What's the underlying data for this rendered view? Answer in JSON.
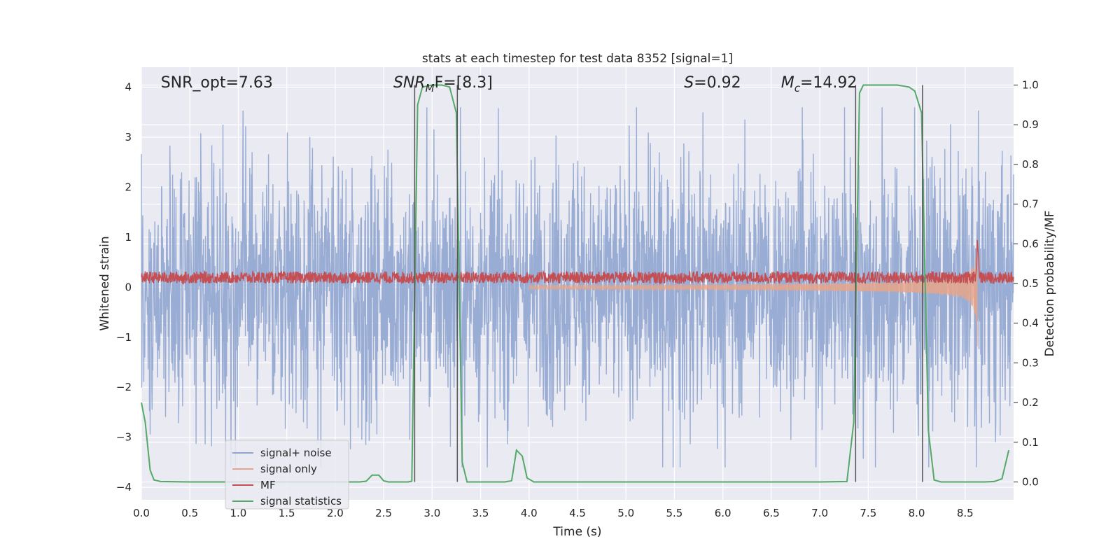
{
  "chart_data": {
    "type": "line",
    "title": "stats at each timestep for test data 8352 [signal=1]",
    "xlabel": "Time (s)",
    "ylabel_left": "Whitened strain",
    "ylabel_right": "Detection probability/MF",
    "xlim": [
      0.0,
      9.0
    ],
    "ylim_left": [
      -4.25,
      4.4
    ],
    "ylim_right": [
      -0.045,
      1.045
    ],
    "x_ticks": [
      "0.0",
      "0.5",
      "1.0",
      "1.5",
      "2.0",
      "2.5",
      "3.0",
      "3.5",
      "4.0",
      "4.5",
      "5.0",
      "5.5",
      "6.0",
      "6.5",
      "7.0",
      "7.5",
      "8.0",
      "8.5"
    ],
    "y_left_ticks": [
      "4",
      "3",
      "2",
      "1",
      "0",
      "−1",
      "−2",
      "−3",
      "−4"
    ],
    "y_right_ticks": [
      "1.0",
      "0.9",
      "0.8",
      "0.7",
      "0.6",
      "0.5",
      "0.4",
      "0.3",
      "0.2",
      "0.1",
      "0.0"
    ],
    "grid": true,
    "legend_position": "lower-left",
    "annotations": [
      {
        "text": "SNR_opt=7.63",
        "x_data": 0.2
      },
      {
        "mathvar": "SNR",
        "sub": "M",
        "rest": "F=[8.3]",
        "x_data": 2.6
      },
      {
        "mathvar": "S",
        "rest": "=0.92",
        "x_data": 5.6
      },
      {
        "mathvar": "M",
        "sub": "c",
        "rest": "=14.92",
        "x_data": 6.6
      }
    ],
    "series": [
      {
        "name": "signal+ noise",
        "color": "#8fa5d0",
        "axis": "left",
        "description": "whitened strain, amplitude mostly between -2.7 and 2.7 with spikes to about ±3.6"
      },
      {
        "name": "signal only",
        "color": "#e8a48a",
        "axis": "left",
        "description": "chirp waveform, amplitude growing to about ±1.6 at t≈8.63 s then ending"
      },
      {
        "name": "MF",
        "color": "#c44e52",
        "axis": "right",
        "description": "matched filter output near 0.51–0.53, peak ≈0.60 at t≈8.63 s"
      },
      {
        "name": "signal statistics",
        "color": "#55a868",
        "axis": "right",
        "points": [
          [
            0.0,
            0.2
          ],
          [
            0.04,
            0.15
          ],
          [
            0.09,
            0.03
          ],
          [
            0.13,
            0.005
          ],
          [
            0.2,
            0.001
          ],
          [
            0.5,
            0.0
          ],
          [
            1.0,
            0.0
          ],
          [
            1.5,
            0.0
          ],
          [
            2.0,
            0.0
          ],
          [
            2.25,
            0.0
          ],
          [
            2.32,
            0.002
          ],
          [
            2.38,
            0.017
          ],
          [
            2.45,
            0.017
          ],
          [
            2.5,
            0.003
          ],
          [
            2.55,
            0.0
          ],
          [
            2.75,
            0.0
          ],
          [
            2.79,
            0.002
          ],
          [
            2.85,
            0.95
          ],
          [
            2.9,
            0.995
          ],
          [
            3.0,
            1.0
          ],
          [
            3.1,
            1.0
          ],
          [
            3.18,
            0.995
          ],
          [
            3.25,
            0.93
          ],
          [
            3.31,
            0.05
          ],
          [
            3.36,
            0.0
          ],
          [
            3.5,
            0.0
          ],
          [
            3.75,
            0.0
          ],
          [
            3.82,
            0.003
          ],
          [
            3.87,
            0.08
          ],
          [
            3.93,
            0.065
          ],
          [
            3.98,
            0.01
          ],
          [
            4.05,
            0.0
          ],
          [
            5.0,
            0.0
          ],
          [
            6.0,
            0.0
          ],
          [
            7.0,
            0.0
          ],
          [
            7.28,
            0.001
          ],
          [
            7.35,
            0.15
          ],
          [
            7.41,
            0.98
          ],
          [
            7.45,
            1.0
          ],
          [
            7.8,
            1.0
          ],
          [
            7.92,
            0.995
          ],
          [
            7.98,
            0.985
          ],
          [
            8.05,
            0.93
          ],
          [
            8.12,
            0.13
          ],
          [
            8.18,
            0.005
          ],
          [
            8.25,
            0.0
          ],
          [
            8.7,
            0.0
          ],
          [
            8.8,
            0.001
          ],
          [
            8.88,
            0.008
          ],
          [
            8.95,
            0.08
          ]
        ]
      }
    ],
    "vertical_lines": [
      2.82,
      3.26,
      7.37,
      8.06
    ],
    "legend": {
      "items": [
        {
          "label": "signal+ noise",
          "color": "#8fa5d0"
        },
        {
          "label": "signal only",
          "color": "#e8a48a"
        },
        {
          "label": "MF",
          "color": "#c44e52"
        },
        {
          "label": "signal statistics",
          "color": "#55a868"
        }
      ]
    },
    "colors": {
      "plot_background": "#eaeaf2",
      "grid": "#ffffff",
      "vline": "#555555"
    }
  }
}
